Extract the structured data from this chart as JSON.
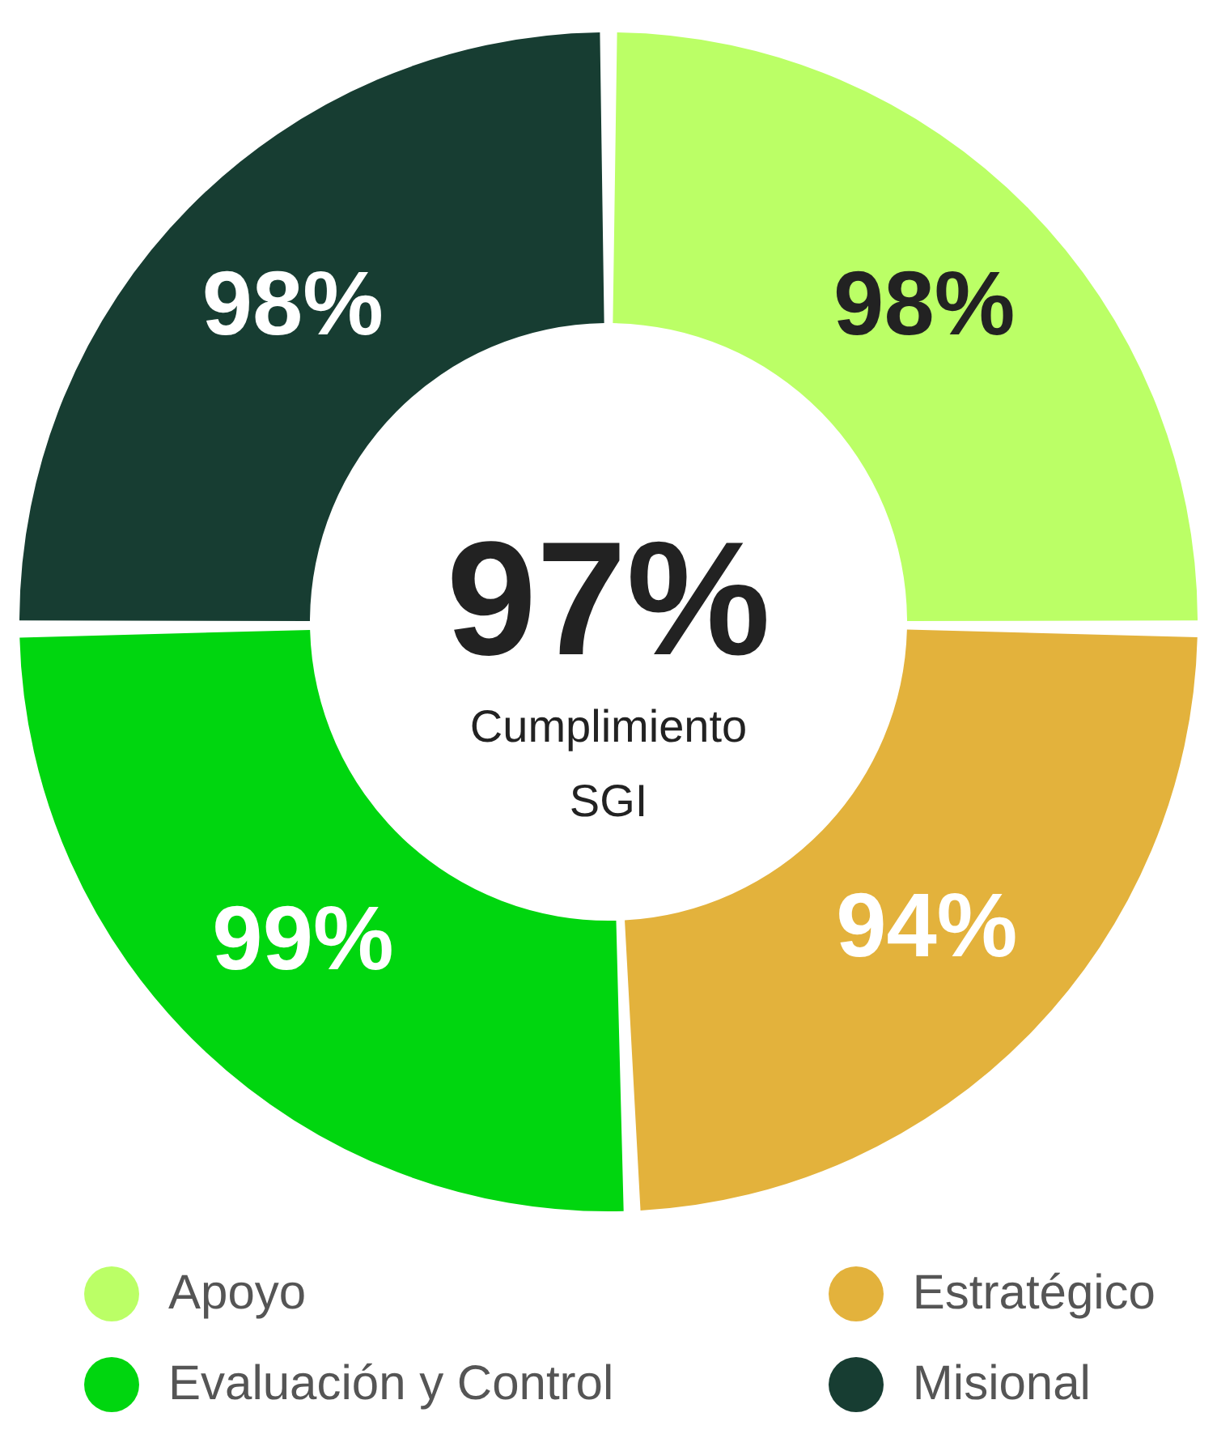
{
  "chart_data": {
    "type": "donut",
    "categories": [
      "Apoyo",
      "Estratégico",
      "Evaluación y Control",
      "Misional"
    ],
    "values": [
      98,
      94,
      99,
      98
    ],
    "value_labels": [
      "98%",
      "94%",
      "99%",
      "98%"
    ],
    "colors": [
      "#bbff66",
      "#e3b23c",
      "#00d60f",
      "#173d32"
    ],
    "legend": "bottom",
    "annotations": [
      "97%",
      "Cumplimiento SGI"
    ]
  }
}
